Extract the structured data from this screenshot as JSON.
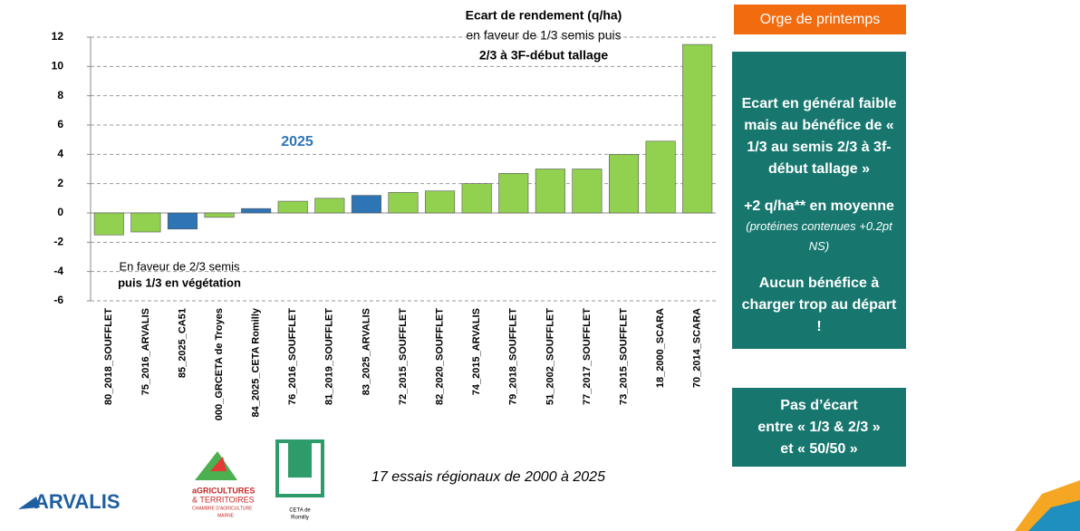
{
  "chart_data": {
    "type": "bar",
    "categories": [
      "80_2018_SOUFFLET",
      "75_2016_ARVALIS",
      "85_2025_CA51",
      "000_GRCETA de Troyes",
      "84_2025_CETA Romilly",
      "76_2016_SOUFFLET",
      "81_2019_SOUFFLET",
      "83_2025_ARVALIS",
      "72_2015_SOUFFLET",
      "82_2020_SOUFFLET",
      "74_2015_ARVALIS",
      "79_2018_SOUFFLET",
      "51_2002_SOUFFLET",
      "77_2017_SOUFFLET",
      "73_2015_SOUFFLET",
      "18_2000_SCARA",
      "70_2014_SCARA"
    ],
    "values": [
      -1.5,
      -1.3,
      -1.1,
      -0.3,
      0.3,
      0.8,
      1.0,
      1.2,
      1.4,
      1.5,
      2.0,
      2.7,
      3.0,
      3.0,
      4.0,
      4.9,
      11.5
    ],
    "colors": [
      "#92d050",
      "#92d050",
      "#2e75b6",
      "#92d050",
      "#2e75b6",
      "#92d050",
      "#92d050",
      "#2e75b6",
      "#92d050",
      "#92d050",
      "#92d050",
      "#92d050",
      "#92d050",
      "#92d050",
      "#92d050",
      "#92d050",
      "#92d050"
    ],
    "ylim": [
      -6,
      12
    ],
    "yticks": [
      -6,
      -4,
      -2,
      0,
      2,
      4,
      6,
      8,
      10,
      12
    ],
    "grid": true,
    "annotation_top": [
      "Ecart de rendement (q/ha)",
      "en faveur de 1/3 semis puis",
      "2/3 à 3F-début tallage"
    ],
    "annotation_year": "2025",
    "annotation_bottom": [
      "En faveur de 2/3 semis",
      "puis 1/3 en végétation"
    ]
  },
  "caption": "17 essais régionaux de 2000 à 2025",
  "header": "Orge de printemps",
  "panel1": {
    "summary": "Ecart en général faible mais au bénéfice de « 1/3 au semis 2/3 à 3f-début tallage »",
    "average": "+2 q/ha** en moyenne",
    "note": "(protéines contenues +0.2pt NS)",
    "warning": "Aucun bénéfice à charger trop au départ !"
  },
  "panel2": [
    "Pas d’écart",
    "entre « 1/3 & 2/3 »",
    "et « 50/50 »"
  ],
  "logos": {
    "arvalis": "ARVALIS",
    "chambre": [
      "aGRICULTURES",
      "& TERRITOIRES",
      "CHAMBRE D'AGRICULTURE",
      "MARNE"
    ],
    "ceta": [
      "CETA de",
      "Romilly"
    ]
  }
}
